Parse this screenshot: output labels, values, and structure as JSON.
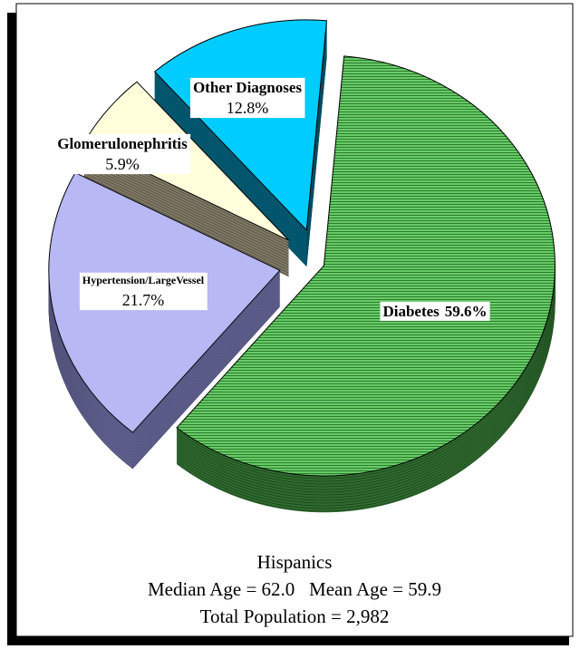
{
  "chart_data": {
    "type": "pie",
    "categories": [
      "Diabetes",
      "Hypertension/LargeVessel",
      "Glomerulonephritis",
      "Other Diagnoses"
    ],
    "values": [
      59.6,
      21.7,
      5.9,
      12.8
    ],
    "value_labels": [
      "59.6%",
      "21.7%",
      "5.9%",
      "12.8%"
    ],
    "colors": [
      "#66cc66",
      "#b8b8f5",
      "#ffffdc",
      "#00ccff"
    ],
    "side_colors": [
      "#2f6b2f",
      "#666699",
      "#807a66",
      "#00607a"
    ],
    "title": "Hispanics",
    "subtitle": "Median Age = 62.0   Mean Age = 59.9",
    "footnote": "Total Population = 2,982"
  }
}
